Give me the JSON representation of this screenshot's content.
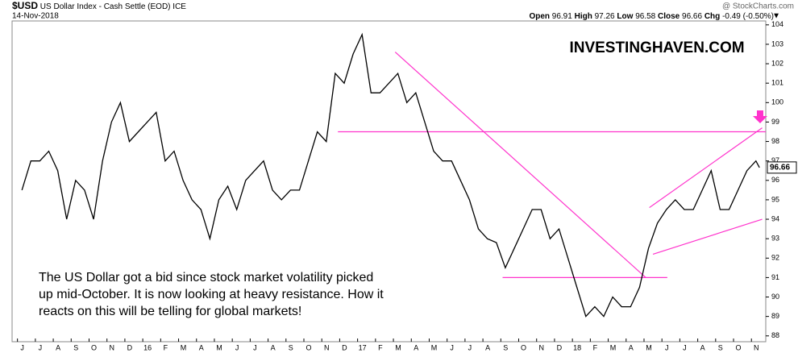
{
  "chart_data": {
    "type": "line",
    "symbol": "$USD",
    "title": "US Dollar Index - Cash Settle (EOD)",
    "exchange": "ICE",
    "date": "14-Nov-2018",
    "source": "@ StockCharts.com",
    "stats": [
      {
        "label": "Open",
        "value": 96.91
      },
      {
        "label": "High",
        "value": 97.26
      },
      {
        "label": "Low",
        "value": 96.58
      },
      {
        "label": "Close",
        "value": 96.66
      },
      {
        "label": "Chg",
        "value": -0.49
      }
    ],
    "change_pct": {
      "value": -0.5,
      "label": "(-0.50%)"
    },
    "watermark": "INVESTINGHAVEN.COM",
    "annotation": [
      "The US Dollar got a bid since stock market volatility picked",
      "up mid-October. It is now looking at heavy resistance. How it",
      "reacts on this will be telling for global markets!"
    ],
    "xlim": [
      -0.3,
      41.8
    ],
    "xticks": [
      {
        "value": 0,
        "label": "J"
      },
      {
        "value": 1,
        "label": "J"
      },
      {
        "value": 2,
        "label": "A"
      },
      {
        "value": 3,
        "label": "S"
      },
      {
        "value": 4,
        "label": "O"
      },
      {
        "value": 5,
        "label": "N"
      },
      {
        "value": 6,
        "label": "D"
      },
      {
        "value": 7,
        "label": "16"
      },
      {
        "value": 8,
        "label": "F"
      },
      {
        "value": 9,
        "label": "M"
      },
      {
        "value": 10,
        "label": "A"
      },
      {
        "value": 11,
        "label": "M"
      },
      {
        "value": 12,
        "label": "J"
      },
      {
        "value": 13,
        "label": "J"
      },
      {
        "value": 14,
        "label": "A"
      },
      {
        "value": 15,
        "label": "S"
      },
      {
        "value": 16,
        "label": "O"
      },
      {
        "value": 17,
        "label": "N"
      },
      {
        "value": 18,
        "label": "D"
      },
      {
        "value": 19,
        "label": "17"
      },
      {
        "value": 20,
        "label": "F"
      },
      {
        "value": 21,
        "label": "M"
      },
      {
        "value": 22,
        "label": "A"
      },
      {
        "value": 23,
        "label": "M"
      },
      {
        "value": 24,
        "label": "J"
      },
      {
        "value": 25,
        "label": "J"
      },
      {
        "value": 26,
        "label": "A"
      },
      {
        "value": 27,
        "label": "S"
      },
      {
        "value": 28,
        "label": "O"
      },
      {
        "value": 29,
        "label": "N"
      },
      {
        "value": 30,
        "label": "D"
      },
      {
        "value": 31,
        "label": "18"
      },
      {
        "value": 32,
        "label": "F"
      },
      {
        "value": 33,
        "label": "M"
      },
      {
        "value": 34,
        "label": "A"
      },
      {
        "value": 35,
        "label": "M"
      },
      {
        "value": 36,
        "label": "J"
      },
      {
        "value": 37,
        "label": "J"
      },
      {
        "value": 38,
        "label": "A"
      },
      {
        "value": 39,
        "label": "S"
      },
      {
        "value": 40,
        "label": "O"
      },
      {
        "value": 41,
        "label": "N"
      }
    ],
    "ylim": [
      87.7,
      104.2
    ],
    "yticks": [
      88,
      89,
      90,
      91,
      92,
      93,
      94,
      95,
      96,
      97,
      98,
      99,
      100,
      101,
      102,
      103,
      104
    ],
    "grid": false,
    "series": [
      {
        "name": "$USD",
        "color": "#000000",
        "x": [
          0.25,
          0.75,
          1.25,
          1.75,
          2.25,
          2.75,
          3.25,
          3.75,
          4.25,
          4.75,
          5.25,
          5.75,
          6.25,
          6.75,
          7.25,
          7.75,
          8.25,
          8.75,
          9.25,
          9.75,
          10.25,
          10.75,
          11.25,
          11.75,
          12.25,
          12.75,
          13.25,
          13.75,
          14.25,
          14.75,
          15.25,
          15.75,
          16.25,
          16.75,
          17.25,
          17.75,
          18.25,
          18.75,
          19.25,
          19.75,
          20.25,
          20.75,
          21.25,
          21.75,
          22.25,
          22.75,
          23.25,
          23.75,
          24.25,
          24.75,
          25.25,
          25.75,
          26.25,
          26.75,
          27.25,
          27.75,
          28.25,
          28.75,
          29.25,
          29.75,
          30.25,
          30.75,
          31.25,
          31.75,
          32.25,
          32.75,
          33.25,
          33.75,
          34.25,
          34.75,
          35.25,
          35.75,
          36.25,
          36.75,
          37.25,
          37.75,
          38.25,
          38.75,
          39.25,
          39.75,
          40.25,
          40.75,
          41.25,
          41.45
        ],
        "values": [
          95.5,
          97,
          97,
          97.5,
          96.5,
          94,
          96,
          95.5,
          94,
          97,
          99,
          100,
          98,
          98.5,
          99,
          99.5,
          97,
          97.5,
          96,
          95,
          94.5,
          93,
          95,
          95.7,
          94.5,
          96,
          96.5,
          97,
          95.5,
          95,
          95.5,
          95.5,
          97,
          98.5,
          98,
          101.5,
          101,
          102.5,
          103.5,
          100.5,
          100.5,
          101,
          101.5,
          100,
          100.5,
          99,
          97.5,
          97,
          97,
          96,
          95,
          93.5,
          93,
          92.8,
          91.5,
          92.5,
          93.5,
          94.5,
          94.5,
          93,
          93.5,
          92,
          90.5,
          89,
          89.5,
          89,
          90,
          89.5,
          89.5,
          90.5,
          92.5,
          93.8,
          94.5,
          95,
          94.5,
          94.5,
          95.5,
          96.5,
          94.5,
          94.5,
          95.5,
          96.5,
          97,
          96.66
        ]
      }
    ],
    "trendlines": [
      {
        "color": "#ff33cc",
        "x": [
          17.9,
          41.8
        ],
        "y": [
          98.5,
          98.5
        ]
      },
      {
        "color": "#ff33cc",
        "x": [
          21.1,
          35.1
        ],
        "y": [
          102.6,
          91
        ]
      },
      {
        "color": "#ff33cc",
        "x": [
          27.1,
          36.3
        ],
        "y": [
          91,
          91
        ]
      },
      {
        "color": "#ff33cc",
        "x": [
          35.3,
          41.6
        ],
        "y": [
          94.6,
          98.7
        ]
      },
      {
        "color": "#ff33cc",
        "x": [
          35.5,
          41.6
        ],
        "y": [
          92.2,
          94
        ]
      }
    ]
  }
}
